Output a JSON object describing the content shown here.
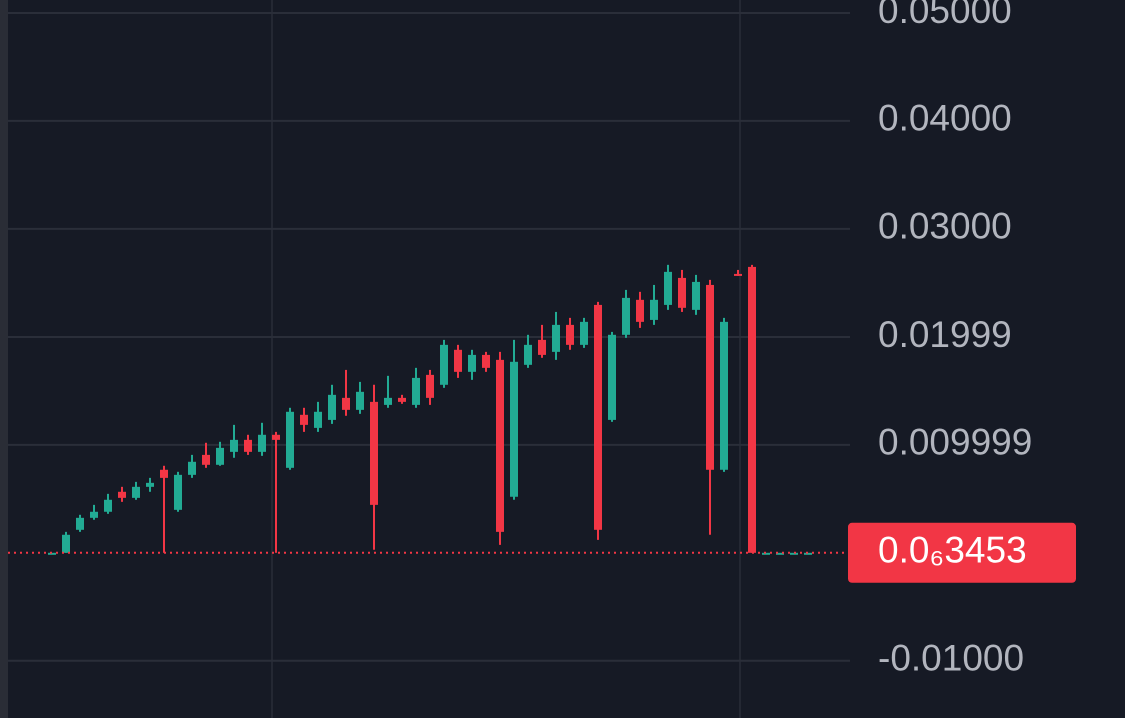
{
  "chart_data": {
    "type": "candlestick",
    "up_color": "#22ab94",
    "down_color": "#f23645",
    "grid": true,
    "ylim": [
      -0.0153,
      0.0512
    ],
    "yticks": [
      {
        "value": 0.05,
        "label": "0.05000"
      },
      {
        "value": 0.04,
        "label": "0.04000"
      },
      {
        "value": 0.03,
        "label": "0.03000"
      },
      0.01999,
      0.009999,
      {
        "value": -0.01,
        "label": "-0.01000"
      }
    ],
    "last_price": {
      "value": 3.453e-07,
      "label": "0.0₆3453"
    },
    "open": [
      0,
      0,
      0.00213,
      0.00324,
      0.0038,
      0.00565,
      0.00509,
      0.00611,
      0.00769,
      0.00398,
      0.00722,
      0.00907,
      0.00815,
      0.00935,
      0.01046,
      0.00935,
      0.01093,
      0.00787,
      0.01278,
      0.01157,
      0.01231,
      0.01435,
      0.01324,
      0.01398,
      0.0137,
      0.01435,
      0.0137,
      0.01648,
      0.01556,
      0.0188,
      0.01676,
      0.01833,
      0.01787,
      0.00519,
      0.01741,
      0.01972,
      0.01861,
      0.02111,
      0.01926,
      0.02296,
      0.01231,
      0.02019,
      0.02343,
      0.02157,
      0.02296,
      0.02546,
      0.0225,
      0.02481,
      0.00769,
      0.02583,
      0.02648,
      0,
      0,
      0,
      0
    ],
    "high": [
      0,
      0.00194,
      0.00352,
      0.00444,
      0.00546,
      0.00611,
      0.00657,
      0.00694,
      0.00806,
      0.0075,
      0.00907,
      0.01019,
      0.01028,
      0.01185,
      0.01093,
      0.01204,
      0.0112,
      0.01343,
      0.01343,
      0.01398,
      0.01556,
      0.01694,
      0.01583,
      0.01556,
      0.01639,
      0.01463,
      0.01713,
      0.01694,
      0.01972,
      0.01926,
      0.0188,
      0.01861,
      0.01861,
      0.01972,
      0.02019,
      0.02111,
      0.02231,
      0.02176,
      0.02176,
      0.02324,
      0.02046,
      0.02435,
      0.02417,
      0.02481,
      0.02667,
      0.0262,
      0.02574,
      0.02528,
      0.02176,
      0.0262,
      0.02667,
      0,
      0,
      0,
      0
    ],
    "low": [
      0,
      0,
      0.00194,
      0.00306,
      0.00361,
      0.00472,
      0.00491,
      0.00565,
      0,
      0.0038,
      0.00694,
      0.00787,
      0.00806,
      0.0088,
      0.00907,
      0.00898,
      0,
      0.00769,
      0.0112,
      0.0112,
      0.01194,
      0.01269,
      0.01287,
      0.00028,
      0.01343,
      0.0138,
      0.01343,
      0.0137,
      0.01528,
      0.0162,
      0.01602,
      0.01676,
      0.00074,
      0.00491,
      0.01713,
      0.01806,
      0.01787,
      0.0188,
      0.01898,
      0.0012,
      0.01213,
      0.01991,
      0.02083,
      0.02111,
      0.0225,
      0.02231,
      0.02204,
      0.00167,
      0.0075,
      0.02565,
      0,
      0,
      0,
      0,
      0
    ],
    "close": [
      0,
      0.00167,
      0.00324,
      0.0038,
      0.00491,
      0.00509,
      0.00611,
      0.00648,
      0.00694,
      0.00722,
      0.00843,
      0.00815,
      0.00972,
      0.01046,
      0.00935,
      0.01093,
      0.01046,
      0.01306,
      0.01185,
      0.01306,
      0.01463,
      0.01324,
      0.01491,
      0.00444,
      0.01435,
      0.01398,
      0.0162,
      0.01435,
      0.01926,
      0.01676,
      0.01833,
      0.01713,
      0.00194,
      0.01769,
      0.01926,
      0.01833,
      0.02111,
      0.01926,
      0.02139,
      0.00213,
      0.02019,
      0.02361,
      0.02139,
      0.02343,
      0.02602,
      0.02269,
      0.02509,
      0.00769,
      0.02139,
      0.02565,
      0,
      0,
      0,
      0,
      0
    ]
  }
}
